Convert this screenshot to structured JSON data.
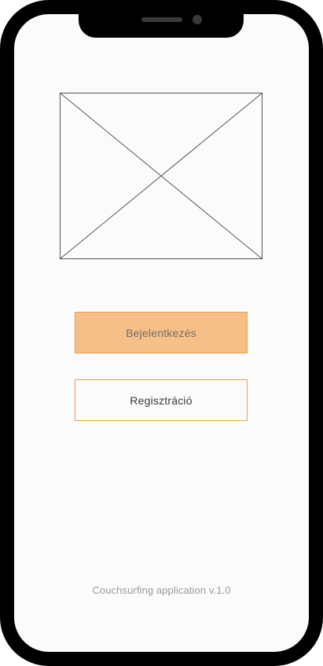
{
  "device": {
    "frame_color": "#000000",
    "screen_color": "#fbfbfb"
  },
  "hero_image": {
    "icon": "image-placeholder-icon"
  },
  "buttons": {
    "login_label": "Bejelentkezés",
    "register_label": "Regisztráció"
  },
  "footer": {
    "version_text": "Couchsurfing application v.1.0"
  },
  "colors": {
    "accent": "#f0a04b",
    "login_fill": "#f5bf87",
    "text_muted": "#9a9a9a"
  }
}
